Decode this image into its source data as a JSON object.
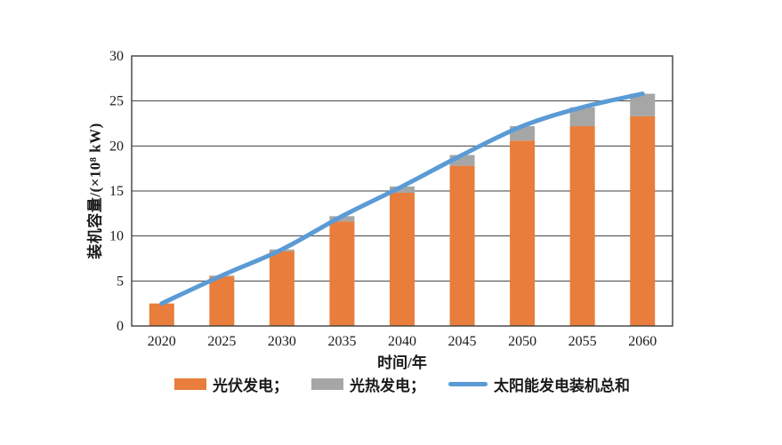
{
  "chart_data": {
    "type": "bar",
    "subtype": "stacked-bars-with-smooth-line",
    "title": "",
    "xlabel": "时间/年",
    "ylabel": "装机容量/(×10⁸ kW)",
    "ylim": [
      0,
      30
    ],
    "yticks": [
      0,
      5,
      10,
      15,
      20,
      25,
      30
    ],
    "grid": true,
    "legend_position": "bottom",
    "categories": [
      "2020",
      "2025",
      "2030",
      "2035",
      "2040",
      "2045",
      "2050",
      "2055",
      "2060"
    ],
    "series": [
      {
        "name": "光伏发电",
        "kind": "bar",
        "stack": true,
        "color": "#E87D3C",
        "values": [
          2.5,
          5.5,
          8.3,
          11.6,
          14.8,
          17.8,
          20.6,
          22.2,
          23.3
        ]
      },
      {
        "name": "光热发电",
        "kind": "bar",
        "stack": true,
        "color": "#A6A6A6",
        "values": [
          0,
          0.1,
          0.2,
          0.6,
          0.7,
          1.2,
          1.6,
          2.1,
          2.5
        ]
      },
      {
        "name": "太阳能发电装机总和",
        "kind": "line",
        "color": "#5B9BD5",
        "values": [
          2.5,
          5.6,
          8.5,
          12.2,
          15.5,
          19.0,
          22.2,
          24.3,
          25.8
        ]
      }
    ]
  },
  "axes": {
    "x_title": "时间/年",
    "y_title": "装机容量/(×10⁸ kW)"
  },
  "legend": {
    "entries": [
      {
        "label": "光伏发电；",
        "swatch": "bar",
        "color": "#E87D3C"
      },
      {
        "label": "光热发电；",
        "swatch": "bar",
        "color": "#A6A6A6"
      },
      {
        "label": "太阳能发电装机总和",
        "swatch": "line",
        "color": "#5B9BD5"
      }
    ]
  },
  "colors": {
    "pv_orange": "#E87D3C",
    "csp_gray": "#A6A6A6",
    "line_blue": "#5B9BD5",
    "axis_line": "#3F3F3F",
    "text": "#1A1A1A",
    "background": "#FFFFFF"
  }
}
